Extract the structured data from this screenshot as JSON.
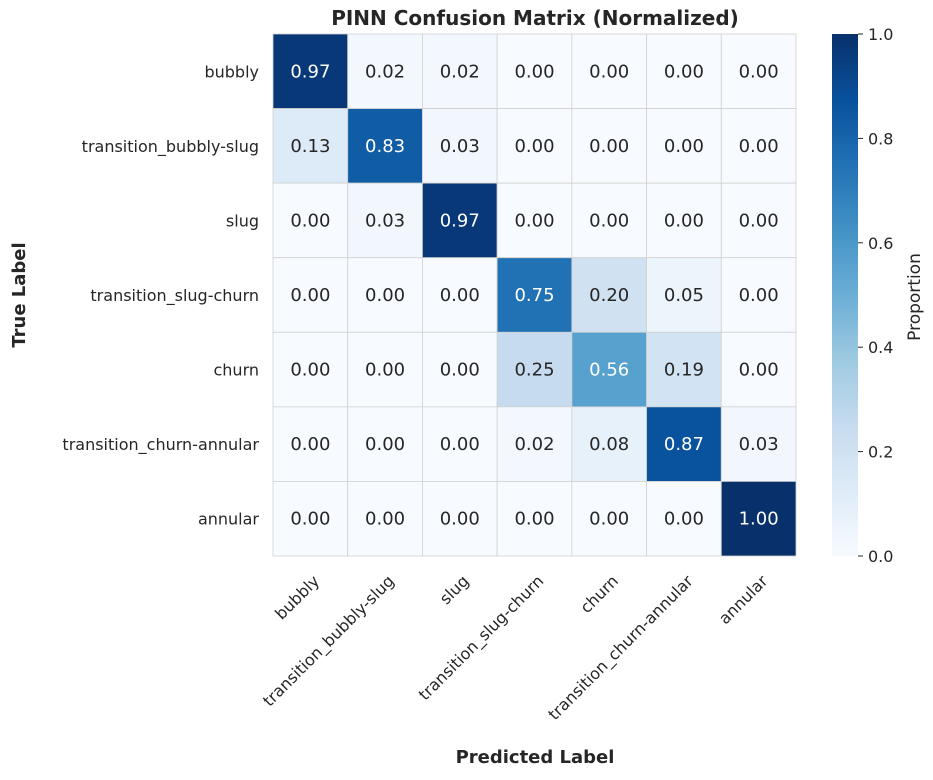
{
  "chart_data": {
    "type": "heatmap",
    "title": "PINN Confusion Matrix (Normalized)",
    "xlabel": "Predicted Label",
    "ylabel": "True Label",
    "x_categories": [
      "bubbly",
      "transition_bubbly-slug",
      "slug",
      "transition_slug-churn",
      "churn",
      "transition_churn-annular",
      "annular"
    ],
    "y_categories": [
      "bubbly",
      "transition_bubbly-slug",
      "slug",
      "transition_slug-churn",
      "churn",
      "transition_churn-annular",
      "annular"
    ],
    "values": [
      [
        0.97,
        0.02,
        0.02,
        0.0,
        0.0,
        0.0,
        0.0
      ],
      [
        0.13,
        0.83,
        0.03,
        0.0,
        0.0,
        0.0,
        0.0
      ],
      [
        0.0,
        0.03,
        0.97,
        0.0,
        0.0,
        0.0,
        0.0
      ],
      [
        0.0,
        0.0,
        0.0,
        0.75,
        0.2,
        0.05,
        0.0
      ],
      [
        0.0,
        0.0,
        0.0,
        0.25,
        0.56,
        0.19,
        0.0
      ],
      [
        0.0,
        0.0,
        0.0,
        0.02,
        0.08,
        0.87,
        0.03
      ],
      [
        0.0,
        0.0,
        0.0,
        0.0,
        0.0,
        0.0,
        1.0
      ]
    ],
    "colormap": "Blues",
    "colorbar": {
      "label": "Proportion",
      "range": [
        0.0,
        1.0
      ],
      "ticks": [
        "0.0",
        "0.2",
        "0.4",
        "0.6",
        "0.8",
        "1.0"
      ]
    },
    "grid": true
  }
}
